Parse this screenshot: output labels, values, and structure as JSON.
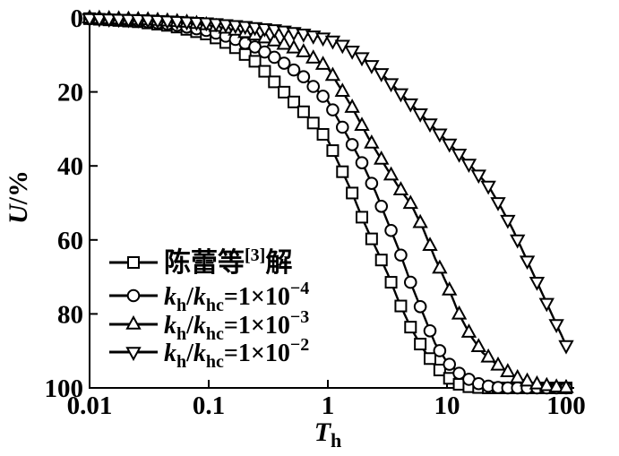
{
  "colors": {
    "foreground": "#000000",
    "background": "#ffffff"
  },
  "chart_data": {
    "type": "line",
    "title": "",
    "x_scale": "log",
    "x_axis": {
      "label": "Th",
      "label_parts": [
        {
          "t": "T",
          "i": 1
        },
        {
          "t": "h",
          "v": "sub"
        }
      ],
      "ticks": [
        0.01,
        0.1,
        1,
        10,
        100
      ],
      "tick_labels": [
        "0.01",
        "0.1",
        "1",
        "10",
        "100"
      ],
      "range": [
        0.01,
        100
      ]
    },
    "y_axis": {
      "label": "U/%",
      "label_parts": [
        {
          "t": "U",
          "i": 1
        },
        {
          "t": "/%"
        }
      ],
      "ticks": [
        0,
        20,
        40,
        60,
        80,
        100
      ],
      "tick_labels": [
        "0",
        "20",
        "40",
        "60",
        "80",
        "100"
      ],
      "range": [
        0,
        100
      ],
      "inverted": true
    },
    "grid": false,
    "legend_position": "inside lower-left",
    "markers_per_series": 50,
    "series": [
      {
        "name": "陈蕾等[3]解",
        "marker": "square",
        "points_log10T_U": [
          [
            -2,
            0.2
          ],
          [
            -1.6,
            1
          ],
          [
            -1.3,
            2.2
          ],
          [
            -1,
            4.5
          ],
          [
            -0.8,
            7.5
          ],
          [
            -0.6,
            12
          ],
          [
            -0.4,
            19
          ],
          [
            -0.2,
            25.5
          ],
          [
            0,
            33
          ],
          [
            0.2,
            47
          ],
          [
            0.3,
            55
          ],
          [
            0.4,
            62
          ],
          [
            0.5,
            69
          ],
          [
            0.6,
            77
          ],
          [
            0.7,
            84
          ],
          [
            0.8,
            89.5
          ],
          [
            0.9,
            94
          ],
          [
            1,
            97
          ],
          [
            1.1,
            99
          ],
          [
            1.2,
            99.8
          ],
          [
            1.35,
            100
          ],
          [
            2,
            100
          ]
        ]
      },
      {
        "name": "kh/khc=1×10−4",
        "marker": "circle",
        "points_log10T_U": [
          [
            -2,
            0.2
          ],
          [
            -1.6,
            0.8
          ],
          [
            -1.3,
            1.8
          ],
          [
            -1,
            3.5
          ],
          [
            -0.8,
            5.5
          ],
          [
            -0.6,
            8
          ],
          [
            -0.4,
            11.5
          ],
          [
            -0.2,
            16
          ],
          [
            0,
            22.5
          ],
          [
            0.2,
            34
          ],
          [
            0.3,
            40
          ],
          [
            0.4,
            47
          ],
          [
            0.5,
            55
          ],
          [
            0.6,
            63
          ],
          [
            0.7,
            72
          ],
          [
            0.8,
            80
          ],
          [
            0.9,
            88
          ],
          [
            1,
            93
          ],
          [
            1.1,
            96
          ],
          [
            1.2,
            98
          ],
          [
            1.3,
            99.3
          ],
          [
            1.45,
            100
          ],
          [
            2,
            100
          ]
        ]
      },
      {
        "name": "kh/khc=1×10−3",
        "marker": "triangle-up",
        "points_log10T_U": [
          [
            -2,
            0.1
          ],
          [
            -1.5,
            0.6
          ],
          [
            -1.2,
            1.2
          ],
          [
            -1,
            2
          ],
          [
            -0.8,
            3.2
          ],
          [
            -0.6,
            4.8
          ],
          [
            -0.4,
            6.8
          ],
          [
            -0.2,
            9.3
          ],
          [
            0,
            13.5
          ],
          [
            0.2,
            24
          ],
          [
            0.35,
            33
          ],
          [
            0.5,
            41
          ],
          [
            0.6,
            46
          ],
          [
            0.7,
            50.5
          ],
          [
            0.8,
            57
          ],
          [
            0.9,
            65
          ],
          [
            1,
            72
          ],
          [
            1.1,
            80
          ],
          [
            1.2,
            86
          ],
          [
            1.3,
            90.5
          ],
          [
            1.45,
            94.5
          ],
          [
            1.6,
            97.5
          ],
          [
            1.75,
            99
          ],
          [
            1.9,
            99.8
          ],
          [
            2,
            100
          ]
        ]
      },
      {
        "name": "kh/khc=1×10−2",
        "marker": "triangle-down",
        "points_log10T_U": [
          [
            -2,
            0.1
          ],
          [
            -1.5,
            0.5
          ],
          [
            -1,
            1.3
          ],
          [
            -0.7,
            2.2
          ],
          [
            -0.4,
            3.3
          ],
          [
            -0.2,
            4.3
          ],
          [
            0,
            5.6
          ],
          [
            0.15,
            7.7
          ],
          [
            0.3,
            11
          ],
          [
            0.45,
            15
          ],
          [
            0.6,
            20
          ],
          [
            0.75,
            25
          ],
          [
            0.9,
            30
          ],
          [
            1.05,
            35
          ],
          [
            1.2,
            40
          ],
          [
            1.35,
            45.5
          ],
          [
            1.45,
            51
          ],
          [
            1.55,
            57
          ],
          [
            1.65,
            64
          ],
          [
            1.75,
            71
          ],
          [
            1.85,
            78
          ],
          [
            1.95,
            85
          ],
          [
            2,
            88.5
          ]
        ]
      }
    ]
  },
  "legend": [
    {
      "marker": "square",
      "parts": [
        {
          "t": "陈蕾等"
        },
        {
          "t": "[3]",
          "v": "sup"
        },
        {
          "t": "解"
        }
      ]
    },
    {
      "marker": "circle",
      "parts": [
        {
          "t": "k",
          "i": 1
        },
        {
          "t": "h",
          "v": "sub"
        },
        {
          "t": "/"
        },
        {
          "t": "k",
          "i": 1
        },
        {
          "t": "hc",
          "v": "sub"
        },
        {
          "t": "=1×10"
        },
        {
          "t": "−4",
          "v": "sup"
        }
      ]
    },
    {
      "marker": "triangle-up",
      "parts": [
        {
          "t": "k",
          "i": 1
        },
        {
          "t": "h",
          "v": "sub"
        },
        {
          "t": "/"
        },
        {
          "t": "k",
          "i": 1
        },
        {
          "t": "hc",
          "v": "sub"
        },
        {
          "t": "=1×10"
        },
        {
          "t": "−3",
          "v": "sup"
        }
      ]
    },
    {
      "marker": "triangle-down",
      "parts": [
        {
          "t": "k",
          "i": 1
        },
        {
          "t": "h",
          "v": "sub"
        },
        {
          "t": "/"
        },
        {
          "t": "k",
          "i": 1
        },
        {
          "t": "hc",
          "v": "sub"
        },
        {
          "t": "=1×10"
        },
        {
          "t": "−2",
          "v": "sup"
        }
      ]
    }
  ]
}
